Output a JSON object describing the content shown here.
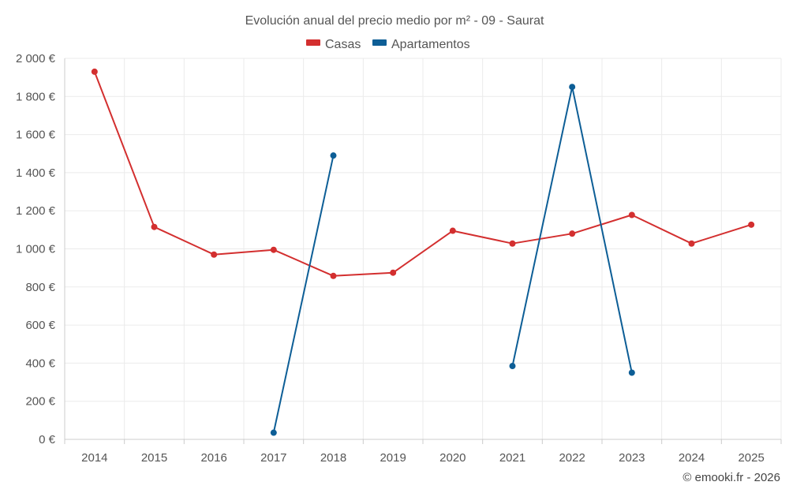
{
  "chart_data": {
    "type": "line",
    "title": "Evolución anual del precio medio por m² - 09 - Saurat",
    "xlabel": "",
    "ylabel": "",
    "x": [
      2014,
      2015,
      2016,
      2017,
      2018,
      2019,
      2020,
      2021,
      2022,
      2023,
      2024,
      2025
    ],
    "ylim": [
      0,
      2000
    ],
    "yticks": [
      0,
      200,
      400,
      600,
      800,
      1000,
      1200,
      1400,
      1600,
      1800,
      2000
    ],
    "ytick_labels": [
      "0 €",
      "200 €",
      "400 €",
      "600 €",
      "800 €",
      "1 000 €",
      "1 200 €",
      "1 400 €",
      "1 600 €",
      "1 800 €",
      "2 000 €"
    ],
    "grid": true,
    "legend_position": "top-center",
    "series": [
      {
        "name": "Casas",
        "color": "#d32f2f",
        "values": [
          1930,
          1115,
          970,
          995,
          858,
          875,
          1095,
          1028,
          1080,
          1178,
          1028,
          1127
        ]
      },
      {
        "name": "Apartamentos",
        "color": "#0d5e96",
        "values": [
          null,
          null,
          null,
          35,
          1490,
          null,
          null,
          385,
          1850,
          350,
          null,
          null
        ]
      }
    ]
  },
  "credit": "© emooki.fr - 2026"
}
